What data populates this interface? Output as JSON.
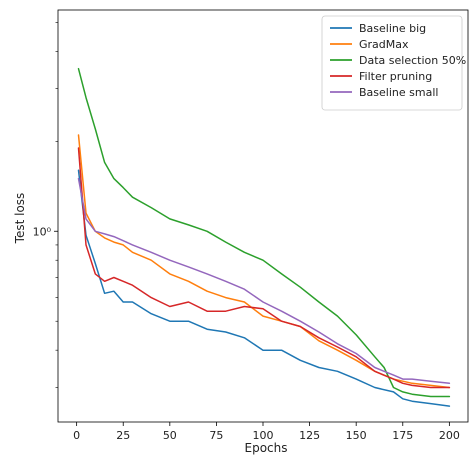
{
  "chart_data": {
    "type": "line",
    "title": "",
    "xlabel": "Epochs",
    "ylabel": "Test loss",
    "xlim": [
      -10,
      210
    ],
    "ylim": [
      0.23,
      5.5
    ],
    "y_scale": "log",
    "x_ticks": [
      0,
      25,
      50,
      75,
      100,
      125,
      150,
      175,
      200
    ],
    "x_tick_labels": [
      "0",
      "25",
      "50",
      "75",
      "100",
      "125",
      "150",
      "175",
      "200"
    ],
    "y_ticks": [
      1
    ],
    "y_tick_labels": [
      "10⁰"
    ],
    "y_minor_ticks": [
      0.3,
      0.4,
      0.5,
      0.6,
      0.7,
      0.8,
      0.9,
      2,
      3,
      4,
      5
    ],
    "grid": false,
    "legend": "top-right",
    "series": [
      {
        "name": "Baseline big",
        "color": "#1f77b4",
        "points": [
          [
            1,
            1.6
          ],
          [
            5,
            0.97
          ],
          [
            10,
            0.78
          ],
          [
            15,
            0.62
          ],
          [
            20,
            0.63
          ],
          [
            25,
            0.58
          ],
          [
            30,
            0.58
          ],
          [
            40,
            0.53
          ],
          [
            50,
            0.5
          ],
          [
            60,
            0.5
          ],
          [
            70,
            0.47
          ],
          [
            80,
            0.46
          ],
          [
            90,
            0.44
          ],
          [
            100,
            0.4
          ],
          [
            110,
            0.4
          ],
          [
            120,
            0.37
          ],
          [
            130,
            0.35
          ],
          [
            140,
            0.34
          ],
          [
            150,
            0.32
          ],
          [
            160,
            0.3
          ],
          [
            170,
            0.29
          ],
          [
            175,
            0.275
          ],
          [
            180,
            0.27
          ],
          [
            190,
            0.265
          ],
          [
            200,
            0.26
          ]
        ]
      },
      {
        "name": "GradMax",
        "color": "#ff7f0e",
        "points": [
          [
            1,
            2.1
          ],
          [
            5,
            1.15
          ],
          [
            10,
            1.0
          ],
          [
            15,
            0.95
          ],
          [
            20,
            0.92
          ],
          [
            25,
            0.9
          ],
          [
            30,
            0.85
          ],
          [
            40,
            0.8
          ],
          [
            50,
            0.72
          ],
          [
            60,
            0.68
          ],
          [
            70,
            0.63
          ],
          [
            80,
            0.6
          ],
          [
            90,
            0.58
          ],
          [
            100,
            0.52
          ],
          [
            110,
            0.5
          ],
          [
            120,
            0.48
          ],
          [
            130,
            0.43
          ],
          [
            140,
            0.4
          ],
          [
            150,
            0.37
          ],
          [
            160,
            0.34
          ],
          [
            170,
            0.32
          ],
          [
            175,
            0.315
          ],
          [
            180,
            0.31
          ],
          [
            190,
            0.305
          ],
          [
            200,
            0.3
          ]
        ]
      },
      {
        "name": "Data selection 50%",
        "color": "#2ca02c",
        "points": [
          [
            1,
            3.5
          ],
          [
            5,
            2.8
          ],
          [
            10,
            2.2
          ],
          [
            15,
            1.7
          ],
          [
            20,
            1.5
          ],
          [
            25,
            1.4
          ],
          [
            30,
            1.3
          ],
          [
            40,
            1.2
          ],
          [
            50,
            1.1
          ],
          [
            60,
            1.05
          ],
          [
            70,
            1.0
          ],
          [
            80,
            0.92
          ],
          [
            90,
            0.85
          ],
          [
            100,
            0.8
          ],
          [
            110,
            0.72
          ],
          [
            120,
            0.65
          ],
          [
            130,
            0.58
          ],
          [
            140,
            0.52
          ],
          [
            150,
            0.45
          ],
          [
            160,
            0.38
          ],
          [
            165,
            0.35
          ],
          [
            170,
            0.3
          ],
          [
            175,
            0.29
          ],
          [
            180,
            0.285
          ],
          [
            190,
            0.28
          ],
          [
            200,
            0.28
          ]
        ]
      },
      {
        "name": "Filter pruning",
        "color": "#d62728",
        "points": [
          [
            1,
            1.9
          ],
          [
            5,
            0.9
          ],
          [
            10,
            0.72
          ],
          [
            15,
            0.68
          ],
          [
            20,
            0.7
          ],
          [
            25,
            0.68
          ],
          [
            30,
            0.66
          ],
          [
            40,
            0.6
          ],
          [
            50,
            0.56
          ],
          [
            60,
            0.58
          ],
          [
            70,
            0.54
          ],
          [
            80,
            0.54
          ],
          [
            90,
            0.56
          ],
          [
            100,
            0.55
          ],
          [
            110,
            0.5
          ],
          [
            120,
            0.48
          ],
          [
            130,
            0.44
          ],
          [
            140,
            0.41
          ],
          [
            150,
            0.38
          ],
          [
            160,
            0.34
          ],
          [
            170,
            0.32
          ],
          [
            175,
            0.31
          ],
          [
            180,
            0.305
          ],
          [
            190,
            0.3
          ],
          [
            200,
            0.3
          ]
        ]
      },
      {
        "name": "Baseline small",
        "color": "#9467bd",
        "points": [
          [
            1,
            1.5
          ],
          [
            5,
            1.1
          ],
          [
            10,
            1.0
          ],
          [
            15,
            0.98
          ],
          [
            20,
            0.96
          ],
          [
            25,
            0.93
          ],
          [
            30,
            0.9
          ],
          [
            40,
            0.85
          ],
          [
            50,
            0.8
          ],
          [
            60,
            0.76
          ],
          [
            70,
            0.72
          ],
          [
            80,
            0.68
          ],
          [
            90,
            0.64
          ],
          [
            100,
            0.58
          ],
          [
            110,
            0.54
          ],
          [
            120,
            0.5
          ],
          [
            130,
            0.46
          ],
          [
            140,
            0.42
          ],
          [
            150,
            0.39
          ],
          [
            160,
            0.35
          ],
          [
            170,
            0.33
          ],
          [
            175,
            0.32
          ],
          [
            180,
            0.32
          ],
          [
            190,
            0.315
          ],
          [
            200,
            0.31
          ]
        ]
      }
    ]
  }
}
